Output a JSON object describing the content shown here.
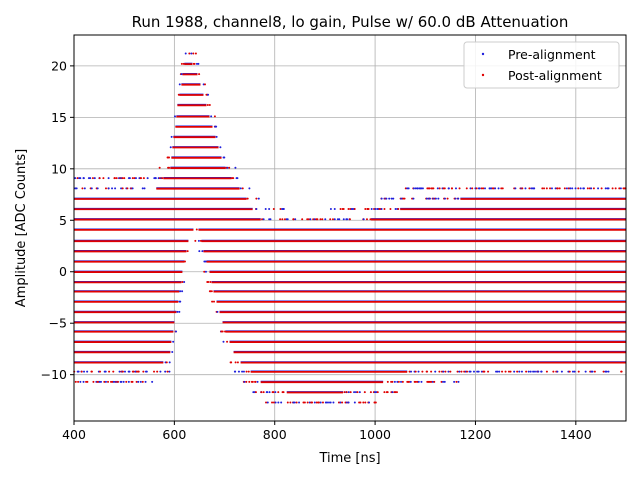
{
  "chart_data": {
    "type": "scatter",
    "title": "Run 1988, channel8, lo gain, Pulse w/ 60.0 dB Attenuation",
    "xlabel": "Time [ns]",
    "ylabel": "Amplitude [ADC Counts]",
    "xlim": [
      400,
      1500
    ],
    "ylim": [
      -14.5,
      23
    ],
    "xticks": [
      400,
      600,
      800,
      1000,
      1200,
      1400
    ],
    "yticks": [
      -10,
      -5,
      0,
      5,
      10,
      15,
      20
    ],
    "ytick_labels": [
      "−10",
      "−5",
      "0",
      "5",
      "10",
      "15",
      "20"
    ],
    "grid": true,
    "legend_position": "top-right",
    "series": [
      {
        "name": "Pre-alignment",
        "color": "#1f1fdc",
        "marker": "dot"
      },
      {
        "name": "Post-alignment",
        "color": "#e00000",
        "marker": "dot"
      }
    ],
    "adc_levels": [
      -12.7,
      -11.7,
      -10.7,
      -9.7,
      -8.8,
      -7.8,
      -6.8,
      -5.8,
      -4.9,
      -3.9,
      -2.9,
      -1.9,
      -1.0,
      0.0,
      1.0,
      2.0,
      3.0,
      4.1,
      5.1,
      6.1,
      7.1,
      8.1,
      9.1,
      10.1,
      11.1,
      12.1,
      13.1,
      14.1,
      15.1,
      16.2,
      17.2,
      18.2,
      19.2,
      20.2,
      21.2
    ],
    "pulse_envelope": {
      "time": [
        400,
        560,
        590,
        605,
        620,
        632,
        645,
        660,
        680,
        700,
        720,
        740,
        760,
        780,
        800,
        840,
        880,
        920,
        960,
        1000,
        1040,
        1070,
        1100,
        1140,
        1200,
        1300,
        1400,
        1500
      ],
      "upper": [
        8.5,
        8.5,
        10.5,
        16.5,
        21.2,
        21.2,
        20.2,
        17.5,
        14.0,
        11.0,
        9.2,
        8.2,
        6.5,
        5.3,
        5.1,
        4.9,
        4.9,
        5.1,
        5.3,
        5.8,
        6.5,
        7.2,
        7.4,
        7.6,
        7.8,
        7.8,
        7.8,
        7.8
      ],
      "lower": [
        -10.0,
        -10.0,
        -9.0,
        -4.5,
        0.0,
        3.0,
        4.0,
        1.0,
        -2.9,
        -6.2,
        -8.8,
        -9.8,
        -10.7,
        -11.7,
        -11.7,
        -12.7,
        -12.7,
        -12.7,
        -11.7,
        -11.7,
        -10.7,
        -10.2,
        -9.8,
        -9.8,
        -9.5,
        -9.5,
        -9.5,
        -9.5
      ]
    }
  }
}
